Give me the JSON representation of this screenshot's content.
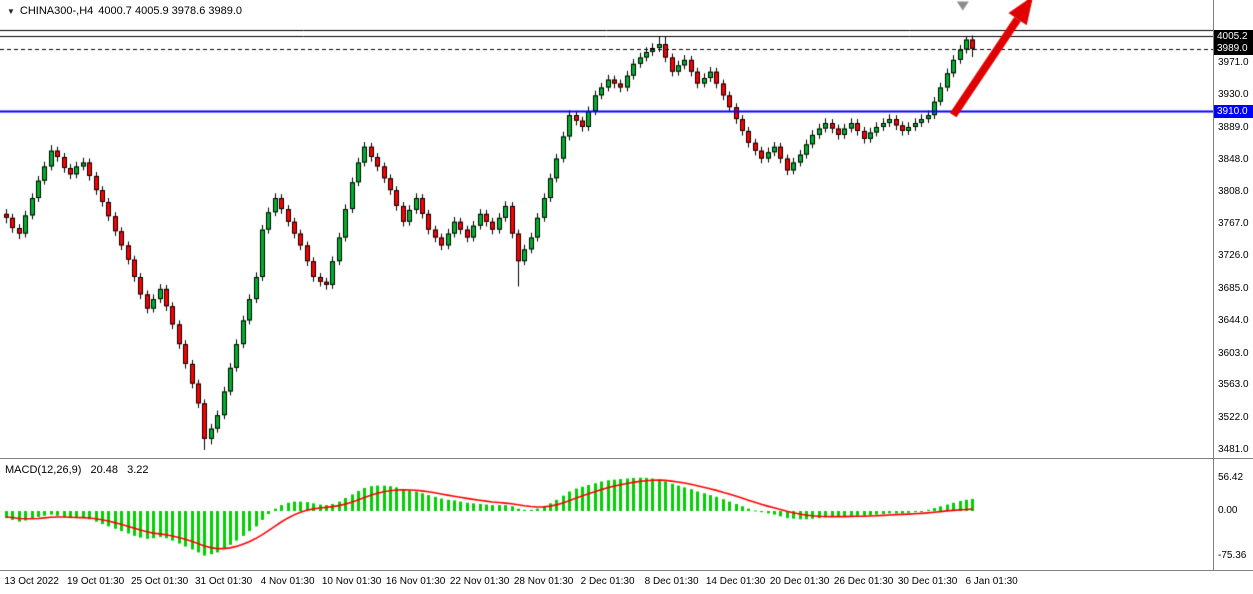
{
  "icons": {
    "chart_menu": "▼"
  },
  "header": {
    "symbol_period": "CHINA300-,H4",
    "ohlc": "4000.7 4005.9 3978.6 3989.0"
  },
  "indicator": {
    "name": "MACD(12,26,9)",
    "macd_value": "20.48",
    "signal_value": "3.22"
  },
  "colors": {
    "bull": "#00B22B",
    "bear": "#FF0000",
    "outline": "#000000",
    "macd_histogram": "#00D000",
    "macd_signal": "#FF0000",
    "support_line": "#0000FF",
    "arrow": "#E00000",
    "marker": "#8C8C8C",
    "badge_black": "#000000",
    "badge_blue": "#0000FF",
    "separator": "#808080"
  },
  "price_axis": {
    "ticks": [
      "3971.0",
      "3930.0",
      "3889.0",
      "3848.0",
      "3808.0",
      "3767.0",
      "3726.0",
      "3685.0",
      "3644.0",
      "3603.0",
      "3563.0",
      "3522.0",
      "3481.0"
    ],
    "badges": [
      {
        "text": "4005.2",
        "bg": "#000000"
      },
      {
        "text": "3989.0",
        "bg": "#000000"
      },
      {
        "text": "3910.0",
        "bg": "#0000FF"
      }
    ]
  },
  "macd_axis": {
    "ticks": [
      "56.42",
      "0.00",
      "-75.36"
    ]
  },
  "time_axis": {
    "labels": [
      "13 Oct 2022",
      "19 Oct 01:30",
      "25 Oct 01:30",
      "31 Oct 01:30",
      "4 Nov 01:30",
      "10 Nov 01:30",
      "16 Nov 01:30",
      "22 Nov 01:30",
      "28 Nov 01:30",
      "2 Dec 01:30",
      "8 Dec 01:30",
      "14 Dec 01:30",
      "20 Dec 01:30",
      "26 Dec 01:30",
      "30 Dec 01:30",
      "6 Jan 01:30"
    ],
    "candle_indices": [
      4,
      14,
      24,
      34,
      44,
      54,
      64,
      74,
      84,
      94,
      104,
      114,
      124,
      134,
      144,
      154
    ]
  },
  "chart_data": [
    {
      "type": "candlestick",
      "title": "CHINA300- H4",
      "y_range": [
        3470.8,
        4050.8
      ],
      "horizontal_lines": [
        {
          "price": 4012.8,
          "color": "#000000",
          "style": "solid",
          "width": 1
        },
        {
          "price": 4005.2,
          "color": "#000000",
          "style": "solid",
          "width": 1
        },
        {
          "price": 3989.0,
          "color": "#000000",
          "style": "dashed",
          "width": 1
        },
        {
          "price": 3910.0,
          "color": "#0000FF",
          "style": "solid",
          "width": 2
        }
      ],
      "annotations": [
        {
          "type": "arrow",
          "color": "#E00000",
          "from": {
            "bar": 148,
            "price": 3905
          },
          "to": {
            "bar": 160.5,
            "price": 4056
          }
        },
        {
          "type": "triangle-marker",
          "color": "#8C8C8C",
          "bar": 149.5,
          "price": 4049
        }
      ],
      "candles": [
        [
          3780,
          3786,
          3768,
          3775
        ],
        [
          3775,
          3780,
          3756,
          3762
        ],
        [
          3762,
          3767,
          3748,
          3755
        ],
        [
          3755,
          3784,
          3750,
          3778
        ],
        [
          3778,
          3806,
          3773,
          3800
        ],
        [
          3800,
          3828,
          3795,
          3822
        ],
        [
          3822,
          3846,
          3817,
          3840
        ],
        [
          3840,
          3867,
          3835,
          3860
        ],
        [
          3860,
          3865,
          3846,
          3852
        ],
        [
          3852,
          3857,
          3832,
          3838
        ],
        [
          3838,
          3843,
          3824,
          3830
        ],
        [
          3830,
          3846,
          3825,
          3840
        ],
        [
          3840,
          3851,
          3835,
          3845
        ],
        [
          3845,
          3850,
          3822,
          3828
        ],
        [
          3828,
          3833,
          3804,
          3810
        ],
        [
          3810,
          3815,
          3789,
          3795
        ],
        [
          3795,
          3800,
          3771,
          3777
        ],
        [
          3777,
          3782,
          3752,
          3758
        ],
        [
          3758,
          3763,
          3734,
          3740
        ],
        [
          3740,
          3745,
          3716,
          3722
        ],
        [
          3722,
          3727,
          3694,
          3700
        ],
        [
          3700,
          3705,
          3672,
          3678
        ],
        [
          3678,
          3683,
          3654,
          3660
        ],
        [
          3660,
          3678,
          3655,
          3672
        ],
        [
          3672,
          3691,
          3667,
          3685
        ],
        [
          3685,
          3690,
          3657,
          3663
        ],
        [
          3663,
          3668,
          3634,
          3640
        ],
        [
          3640,
          3645,
          3609,
          3615
        ],
        [
          3615,
          3620,
          3584,
          3590
        ],
        [
          3590,
          3595,
          3559,
          3565
        ],
        [
          3565,
          3570,
          3534,
          3540
        ],
        [
          3540,
          3545,
          3481,
          3495
        ],
        [
          3495,
          3514,
          3488,
          3508
        ],
        [
          3508,
          3531,
          3503,
          3525
        ],
        [
          3525,
          3561,
          3520,
          3555
        ],
        [
          3555,
          3591,
          3550,
          3585
        ],
        [
          3585,
          3621,
          3580,
          3615
        ],
        [
          3615,
          3651,
          3610,
          3645
        ],
        [
          3645,
          3678,
          3640,
          3672
        ],
        [
          3672,
          3706,
          3667,
          3700
        ],
        [
          3700,
          3766,
          3695,
          3760
        ],
        [
          3760,
          3788,
          3755,
          3782
        ],
        [
          3782,
          3806,
          3777,
          3800
        ],
        [
          3800,
          3805,
          3780,
          3786
        ],
        [
          3786,
          3791,
          3764,
          3770
        ],
        [
          3770,
          3775,
          3749,
          3755
        ],
        [
          3755,
          3760,
          3734,
          3740
        ],
        [
          3740,
          3745,
          3714,
          3720
        ],
        [
          3720,
          3725,
          3694,
          3700
        ],
        [
          3700,
          3705,
          3688,
          3694
        ],
        [
          3694,
          3699,
          3684,
          3690
        ],
        [
          3690,
          3726,
          3685,
          3720
        ],
        [
          3720,
          3756,
          3715,
          3750
        ],
        [
          3750,
          3792,
          3745,
          3786
        ],
        [
          3786,
          3826,
          3781,
          3820
        ],
        [
          3820,
          3851,
          3815,
          3845
        ],
        [
          3845,
          3871,
          3840,
          3865
        ],
        [
          3865,
          3870,
          3846,
          3852
        ],
        [
          3852,
          3857,
          3834,
          3840
        ],
        [
          3840,
          3845,
          3819,
          3825
        ],
        [
          3825,
          3830,
          3804,
          3810
        ],
        [
          3810,
          3815,
          3784,
          3790
        ],
        [
          3790,
          3795,
          3764,
          3770
        ],
        [
          3770,
          3791,
          3765,
          3785
        ],
        [
          3785,
          3806,
          3780,
          3800
        ],
        [
          3800,
          3805,
          3774,
          3780
        ],
        [
          3780,
          3785,
          3754,
          3760
        ],
        [
          3760,
          3765,
          3744,
          3750
        ],
        [
          3750,
          3755,
          3734,
          3740
        ],
        [
          3740,
          3761,
          3735,
          3755
        ],
        [
          3755,
          3776,
          3750,
          3770
        ],
        [
          3770,
          3775,
          3754,
          3760
        ],
        [
          3760,
          3765,
          3744,
          3750
        ],
        [
          3750,
          3771,
          3745,
          3765
        ],
        [
          3765,
          3786,
          3760,
          3780
        ],
        [
          3780,
          3785,
          3764,
          3770
        ],
        [
          3770,
          3775,
          3754,
          3760
        ],
        [
          3760,
          3781,
          3755,
          3775
        ],
        [
          3775,
          3796,
          3770,
          3790
        ],
        [
          3790,
          3795,
          3749,
          3755
        ],
        [
          3755,
          3760,
          3688,
          3720
        ],
        [
          3720,
          3741,
          3715,
          3735
        ],
        [
          3735,
          3756,
          3730,
          3750
        ],
        [
          3750,
          3781,
          3745,
          3775
        ],
        [
          3775,
          3806,
          3770,
          3800
        ],
        [
          3800,
          3831,
          3795,
          3825
        ],
        [
          3825,
          3856,
          3820,
          3850
        ],
        [
          3850,
          3884,
          3845,
          3878
        ],
        [
          3878,
          3911,
          3873,
          3905
        ],
        [
          3905,
          3910,
          3892,
          3898
        ],
        [
          3898,
          3903,
          3884,
          3890
        ],
        [
          3890,
          3916,
          3885,
          3910
        ],
        [
          3910,
          3936,
          3905,
          3930
        ],
        [
          3930,
          3946,
          3925,
          3940
        ],
        [
          3940,
          3956,
          3935,
          3950
        ],
        [
          3950,
          3955,
          3939,
          3945
        ],
        [
          3945,
          3950,
          3934,
          3940
        ],
        [
          3940,
          3961,
          3935,
          3955
        ],
        [
          3955,
          3976,
          3950,
          3970
        ],
        [
          3970,
          3984,
          3965,
          3978
        ],
        [
          3978,
          3991,
          3973,
          3985
        ],
        [
          3985,
          3996,
          3980,
          3990
        ],
        [
          3990,
          4005,
          3985,
          3995
        ],
        [
          3995,
          4004,
          3972,
          3978
        ],
        [
          3978,
          3983,
          3954,
          3960
        ],
        [
          3960,
          3974,
          3955,
          3968
        ],
        [
          3968,
          3981,
          3963,
          3975
        ],
        [
          3975,
          3980,
          3954,
          3960
        ],
        [
          3960,
          3965,
          3939,
          3945
        ],
        [
          3945,
          3958,
          3940,
          3952
        ],
        [
          3952,
          3966,
          3947,
          3960
        ],
        [
          3960,
          3965,
          3939,
          3945
        ],
        [
          3945,
          3950,
          3924,
          3930
        ],
        [
          3930,
          3935,
          3909,
          3915
        ],
        [
          3915,
          3920,
          3894,
          3900
        ],
        [
          3900,
          3905,
          3879,
          3885
        ],
        [
          3885,
          3890,
          3864,
          3870
        ],
        [
          3870,
          3875,
          3854,
          3860
        ],
        [
          3860,
          3865,
          3844,
          3850
        ],
        [
          3850,
          3864,
          3845,
          3858
        ],
        [
          3858,
          3871,
          3853,
          3865
        ],
        [
          3865,
          3870,
          3844,
          3850
        ],
        [
          3850,
          3855,
          3829,
          3835
        ],
        [
          3835,
          3851,
          3830,
          3845
        ],
        [
          3845,
          3861,
          3840,
          3855
        ],
        [
          3855,
          3874,
          3850,
          3868
        ],
        [
          3868,
          3886,
          3863,
          3880
        ],
        [
          3880,
          3894,
          3875,
          3888
        ],
        [
          3888,
          3901,
          3883,
          3895
        ],
        [
          3895,
          3900,
          3882,
          3888
        ],
        [
          3888,
          3893,
          3874,
          3880
        ],
        [
          3880,
          3894,
          3875,
          3888
        ],
        [
          3888,
          3901,
          3883,
          3895
        ],
        [
          3895,
          3900,
          3879,
          3885
        ],
        [
          3885,
          3890,
          3869,
          3875
        ],
        [
          3875,
          3889,
          3870,
          3883
        ],
        [
          3883,
          3896,
          3878,
          3890
        ],
        [
          3890,
          3901,
          3885,
          3895
        ],
        [
          3895,
          3906,
          3890,
          3900
        ],
        [
          3900,
          3905,
          3886,
          3892
        ],
        [
          3892,
          3897,
          3879,
          3885
        ],
        [
          3885,
          3896,
          3880,
          3890
        ],
        [
          3890,
          3901,
          3885,
          3895
        ],
        [
          3895,
          3906,
          3890,
          3900
        ],
        [
          3900,
          3911,
          3895,
          3905
        ],
        [
          3905,
          3928,
          3900,
          3922
        ],
        [
          3922,
          3946,
          3917,
          3940
        ],
        [
          3940,
          3964,
          3935,
          3958
        ],
        [
          3958,
          3981,
          3953,
          3975
        ],
        [
          3975,
          3994,
          3970,
          3988
        ],
        [
          3988,
          4004,
          3983,
          4000.7
        ],
        [
          4000.7,
          4005.9,
          3978.6,
          3989.0
        ]
      ]
    },
    {
      "type": "macd",
      "name": "MACD(12,26,9)",
      "current": {
        "macd": 20.48,
        "signal": 3.22
      },
      "y_range": [
        -99.7,
        82.9
      ],
      "values": [
        -12,
        -15,
        -18,
        -16,
        -12,
        -10,
        -8,
        -6,
        -8,
        -10,
        -12,
        -12,
        -12,
        -14,
        -18,
        -22,
        -26,
        -30,
        -34,
        -38,
        -42,
        -45,
        -47,
        -46,
        -44,
        -46,
        -50,
        -55,
        -60,
        -65,
        -70,
        -75.36,
        -73,
        -70,
        -64,
        -57,
        -50,
        -42,
        -34,
        -26,
        -15,
        -5,
        4,
        10,
        14,
        16,
        16,
        15,
        13,
        11,
        10,
        12,
        16,
        22,
        28,
        34,
        39,
        42,
        43,
        43,
        42,
        40,
        37,
        35,
        33,
        30,
        27,
        24,
        21,
        19,
        18,
        16,
        14,
        13,
        12,
        11,
        10,
        10,
        10,
        8,
        4,
        2,
        2,
        4,
        8,
        13,
        19,
        26,
        33,
        38,
        41,
        44,
        47,
        50,
        52,
        53,
        54,
        55,
        56,
        56.42,
        56,
        55,
        53,
        50,
        46,
        43,
        40,
        37,
        33,
        30,
        27,
        24,
        20,
        16,
        12,
        8,
        4,
        1,
        -2,
        -4,
        -6,
        -9,
        -12,
        -13,
        -14,
        -14,
        -13,
        -12,
        -11,
        -10,
        -10,
        -9,
        -8,
        -8,
        -8,
        -7,
        -6,
        -5,
        -4,
        -4,
        -4,
        -3,
        -2,
        0,
        2,
        5,
        8,
        11,
        14,
        17,
        19,
        20.48
      ],
      "signal": [
        -10,
        -11,
        -12.5,
        -13,
        -13,
        -12.5,
        -11.5,
        -10.5,
        -10,
        -10,
        -10.5,
        -11,
        -11.2,
        -11.8,
        -13,
        -14.8,
        -17,
        -19.6,
        -22.5,
        -25.6,
        -28.9,
        -32.1,
        -35.1,
        -37.3,
        -38.6,
        -40.1,
        -42.1,
        -44.7,
        -47.7,
        -51.2,
        -55,
        -59.1,
        -61.9,
        -63.5,
        -63.6,
        -62.3,
        -59.8,
        -56.2,
        -51.8,
        -46.6,
        -40.3,
        -33.2,
        -25.8,
        -18.6,
        -12.1,
        -6.5,
        -2,
        1.4,
        3.7,
        5.2,
        6.2,
        7.4,
        9.1,
        11.7,
        15,
        18.8,
        22.8,
        26.6,
        29.9,
        32.5,
        34.4,
        35.5,
        35.8,
        35.6,
        35.1,
        34.1,
        32.7,
        30.9,
        28.9,
        26.9,
        25.1,
        23.3,
        21.4,
        19.7,
        18.2,
        16.8,
        15.4,
        14.3,
        13.4,
        12.3,
        10.7,
        9,
        7.6,
        6.9,
        7.1,
        8.3,
        10.4,
        13.5,
        17.4,
        21.5,
        25.4,
        29.1,
        32.7,
        36.2,
        39.4,
        42.1,
        44.5,
        46.6,
        48.5,
        50.1,
        51.3,
        52,
        52.2,
        51.8,
        50.6,
        49.1,
        47.3,
        45.2,
        42.8,
        40.2,
        37.6,
        34.9,
        31.9,
        28.7,
        25.4,
        21.9,
        18.3,
        14.8,
        11.4,
        8.3,
        5.4,
        2.5,
        -0.4,
        -2.9,
        -5.1,
        -6.9,
        -8.1,
        -8.9,
        -9.3,
        -9.5,
        -9.5,
        -9.4,
        -9.1,
        -8.9,
        -8.7,
        -8.4,
        -7.9,
        -7.3,
        -6.6,
        -6.1,
        -5.7,
        -5.2,
        -4.6,
        -3.9,
        -3.1,
        -2.1,
        -1,
        0.2,
        1.1,
        1.9,
        2.6,
        3.22
      ]
    }
  ]
}
